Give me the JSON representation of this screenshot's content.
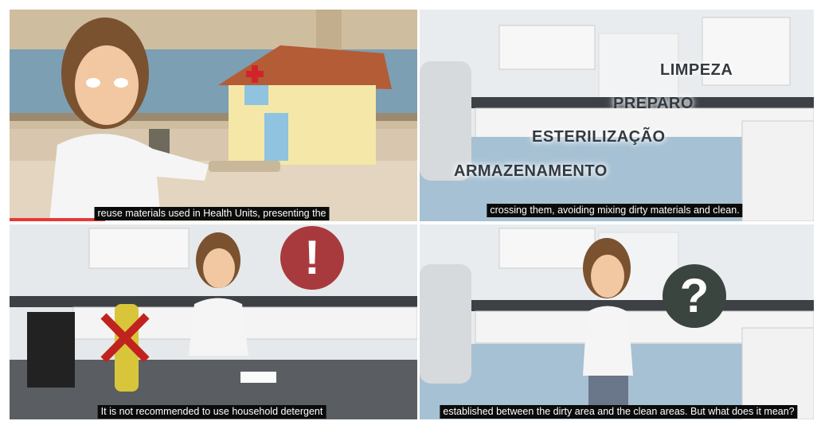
{
  "frames": [
    {
      "subtitle": "reuse materials used in Health Units, presenting the"
    },
    {
      "overlay_labels": [
        "LIMPEZA",
        "PREPARO",
        "ESTERILIZAÇÃO",
        "ARMAZENAMENTO"
      ],
      "subtitle": "crossing them, avoiding mixing dirty materials and clean."
    },
    {
      "icon": "!",
      "subtitle": "It is not recommended to use household detergent"
    },
    {
      "icon": "?",
      "subtitle": "established between the dirty area and the clean areas. But what does it mean?"
    }
  ]
}
